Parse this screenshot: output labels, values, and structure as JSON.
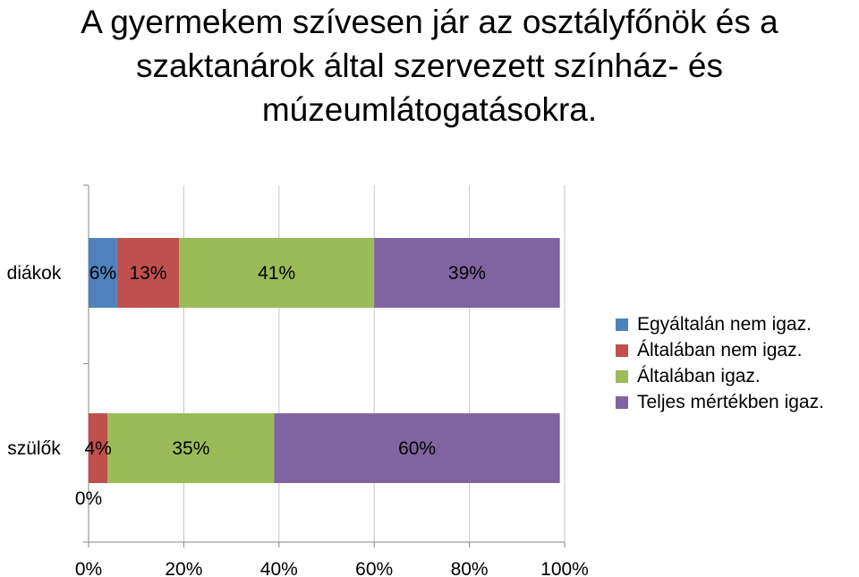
{
  "title": "A gyermekem szívesen jár az osztályfőnök és a szaktanárok által szervezett színház- és múzeumlátogatásokra.",
  "chart_data": {
    "type": "bar",
    "orientation": "horizontal",
    "stacked": true,
    "categories": [
      "diákok",
      "szülők"
    ],
    "series": [
      {
        "name": "Egyáltalán nem igaz.",
        "color": "#4F81BD",
        "values": [
          6,
          0
        ],
        "labels": [
          "6%",
          "0%"
        ]
      },
      {
        "name": "Általában nem igaz.",
        "color": "#C0504D",
        "values": [
          13,
          4
        ],
        "labels": [
          "13%",
          "4%"
        ]
      },
      {
        "name": "Általában igaz.",
        "color": "#9BBB59",
        "values": [
          41,
          35
        ],
        "labels": [
          "41%",
          "35%"
        ]
      },
      {
        "name": "Teljes mértékben igaz.",
        "color": "#8064A2",
        "values": [
          39,
          60
        ],
        "labels": [
          "39%",
          "60%"
        ]
      }
    ],
    "x_ticks": [
      "0%",
      "20%",
      "40%",
      "60%",
      "80%",
      "100%"
    ],
    "xlim": [
      0,
      100
    ],
    "grid": "vertical",
    "legend": "right"
  }
}
